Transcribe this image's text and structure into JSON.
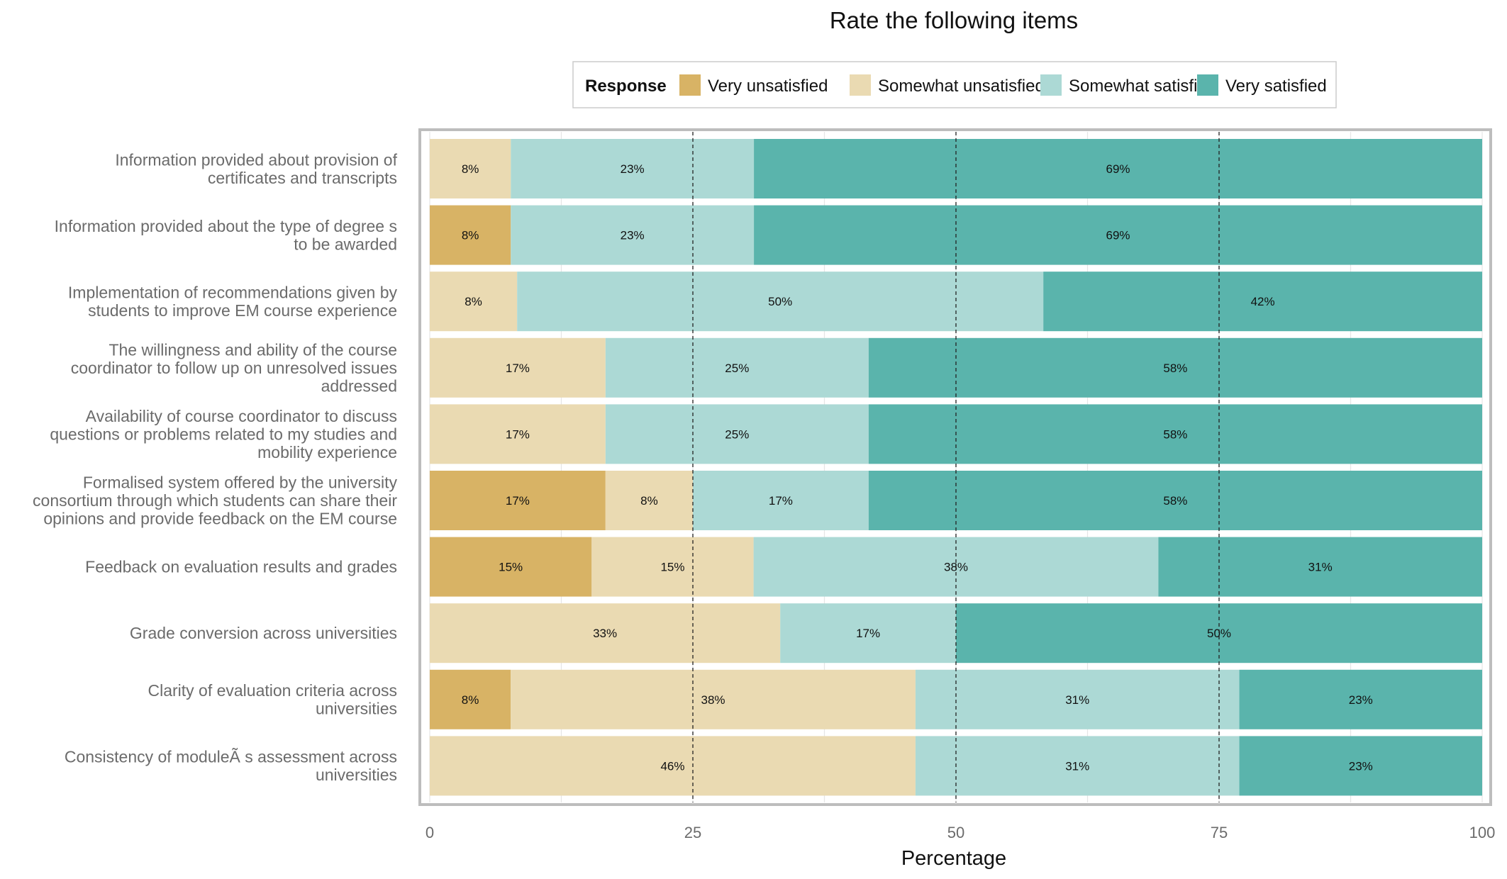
{
  "chart_data": {
    "type": "bar",
    "orientation": "horizontal",
    "stacked": true,
    "title": "Rate the following items",
    "xlabel": "Percentage",
    "ylabel": "",
    "xlim": [
      0,
      100
    ],
    "xticks": [
      0,
      25,
      50,
      75,
      100
    ],
    "reference_lines": [
      25,
      50,
      75
    ],
    "legend": {
      "title": "Response",
      "position": "top",
      "entries": [
        "Very unsatisfied",
        "Somewhat unsatisfied",
        "Somewhat satisfied",
        "Very satisfied"
      ]
    },
    "categories": [
      [
        "Information provided about provision of",
        "certificates and transcripts"
      ],
      [
        "Information provided about the type of degree s",
        "to be awarded"
      ],
      [
        "Implementation of recommendations given by",
        "students to improve EM course experience"
      ],
      [
        "The willingness and ability of the course",
        "coordinator to follow up on unresolved issues",
        "addressed"
      ],
      [
        "Availability of course coordinator to discuss",
        "questions or problems related to my studies and",
        "mobility experience"
      ],
      [
        "Formalised system offered by the university",
        "consortium through which students can share their",
        "opinions and provide feedback on the EM course"
      ],
      [
        "Feedback on evaluation results and grades"
      ],
      [
        "Grade conversion across universities"
      ],
      [
        "Clarity of evaluation criteria across",
        "universities"
      ],
      [
        "Consistency of moduleÃ s assessment across",
        "universities"
      ]
    ],
    "series": [
      {
        "name": "Very unsatisfied",
        "color": "#D8B365",
        "values": [
          0,
          7.7,
          0,
          0,
          0,
          16.7,
          15.4,
          0,
          7.7,
          0
        ],
        "labels": [
          "",
          "8%",
          "",
          "",
          "",
          "17%",
          "15%",
          "",
          "8%",
          ""
        ]
      },
      {
        "name": "Somewhat unsatisfied",
        "color": "#EADAB2",
        "values": [
          7.7,
          0,
          8.3,
          16.7,
          16.7,
          8.3,
          15.4,
          33.3,
          38.5,
          46.2
        ],
        "labels": [
          "8%",
          "",
          "8%",
          "17%",
          "17%",
          "8%",
          "15%",
          "33%",
          "38%",
          "46%"
        ]
      },
      {
        "name": "Somewhat satisfied",
        "color": "#ACD9D5",
        "values": [
          23.1,
          23.1,
          50,
          25,
          25,
          16.7,
          38.5,
          16.7,
          30.8,
          30.8
        ],
        "labels": [
          "23%",
          "23%",
          "50%",
          "25%",
          "25%",
          "17%",
          "38%",
          "17%",
          "31%",
          "31%"
        ]
      },
      {
        "name": "Very satisfied",
        "color": "#5AB4AC",
        "values": [
          69.2,
          69.2,
          41.7,
          58.3,
          58.3,
          58.3,
          30.8,
          50,
          23.1,
          23.1
        ],
        "labels": [
          "69%",
          "69%",
          "42%",
          "58%",
          "58%",
          "58%",
          "31%",
          "50%",
          "23%",
          "23%"
        ]
      }
    ]
  }
}
